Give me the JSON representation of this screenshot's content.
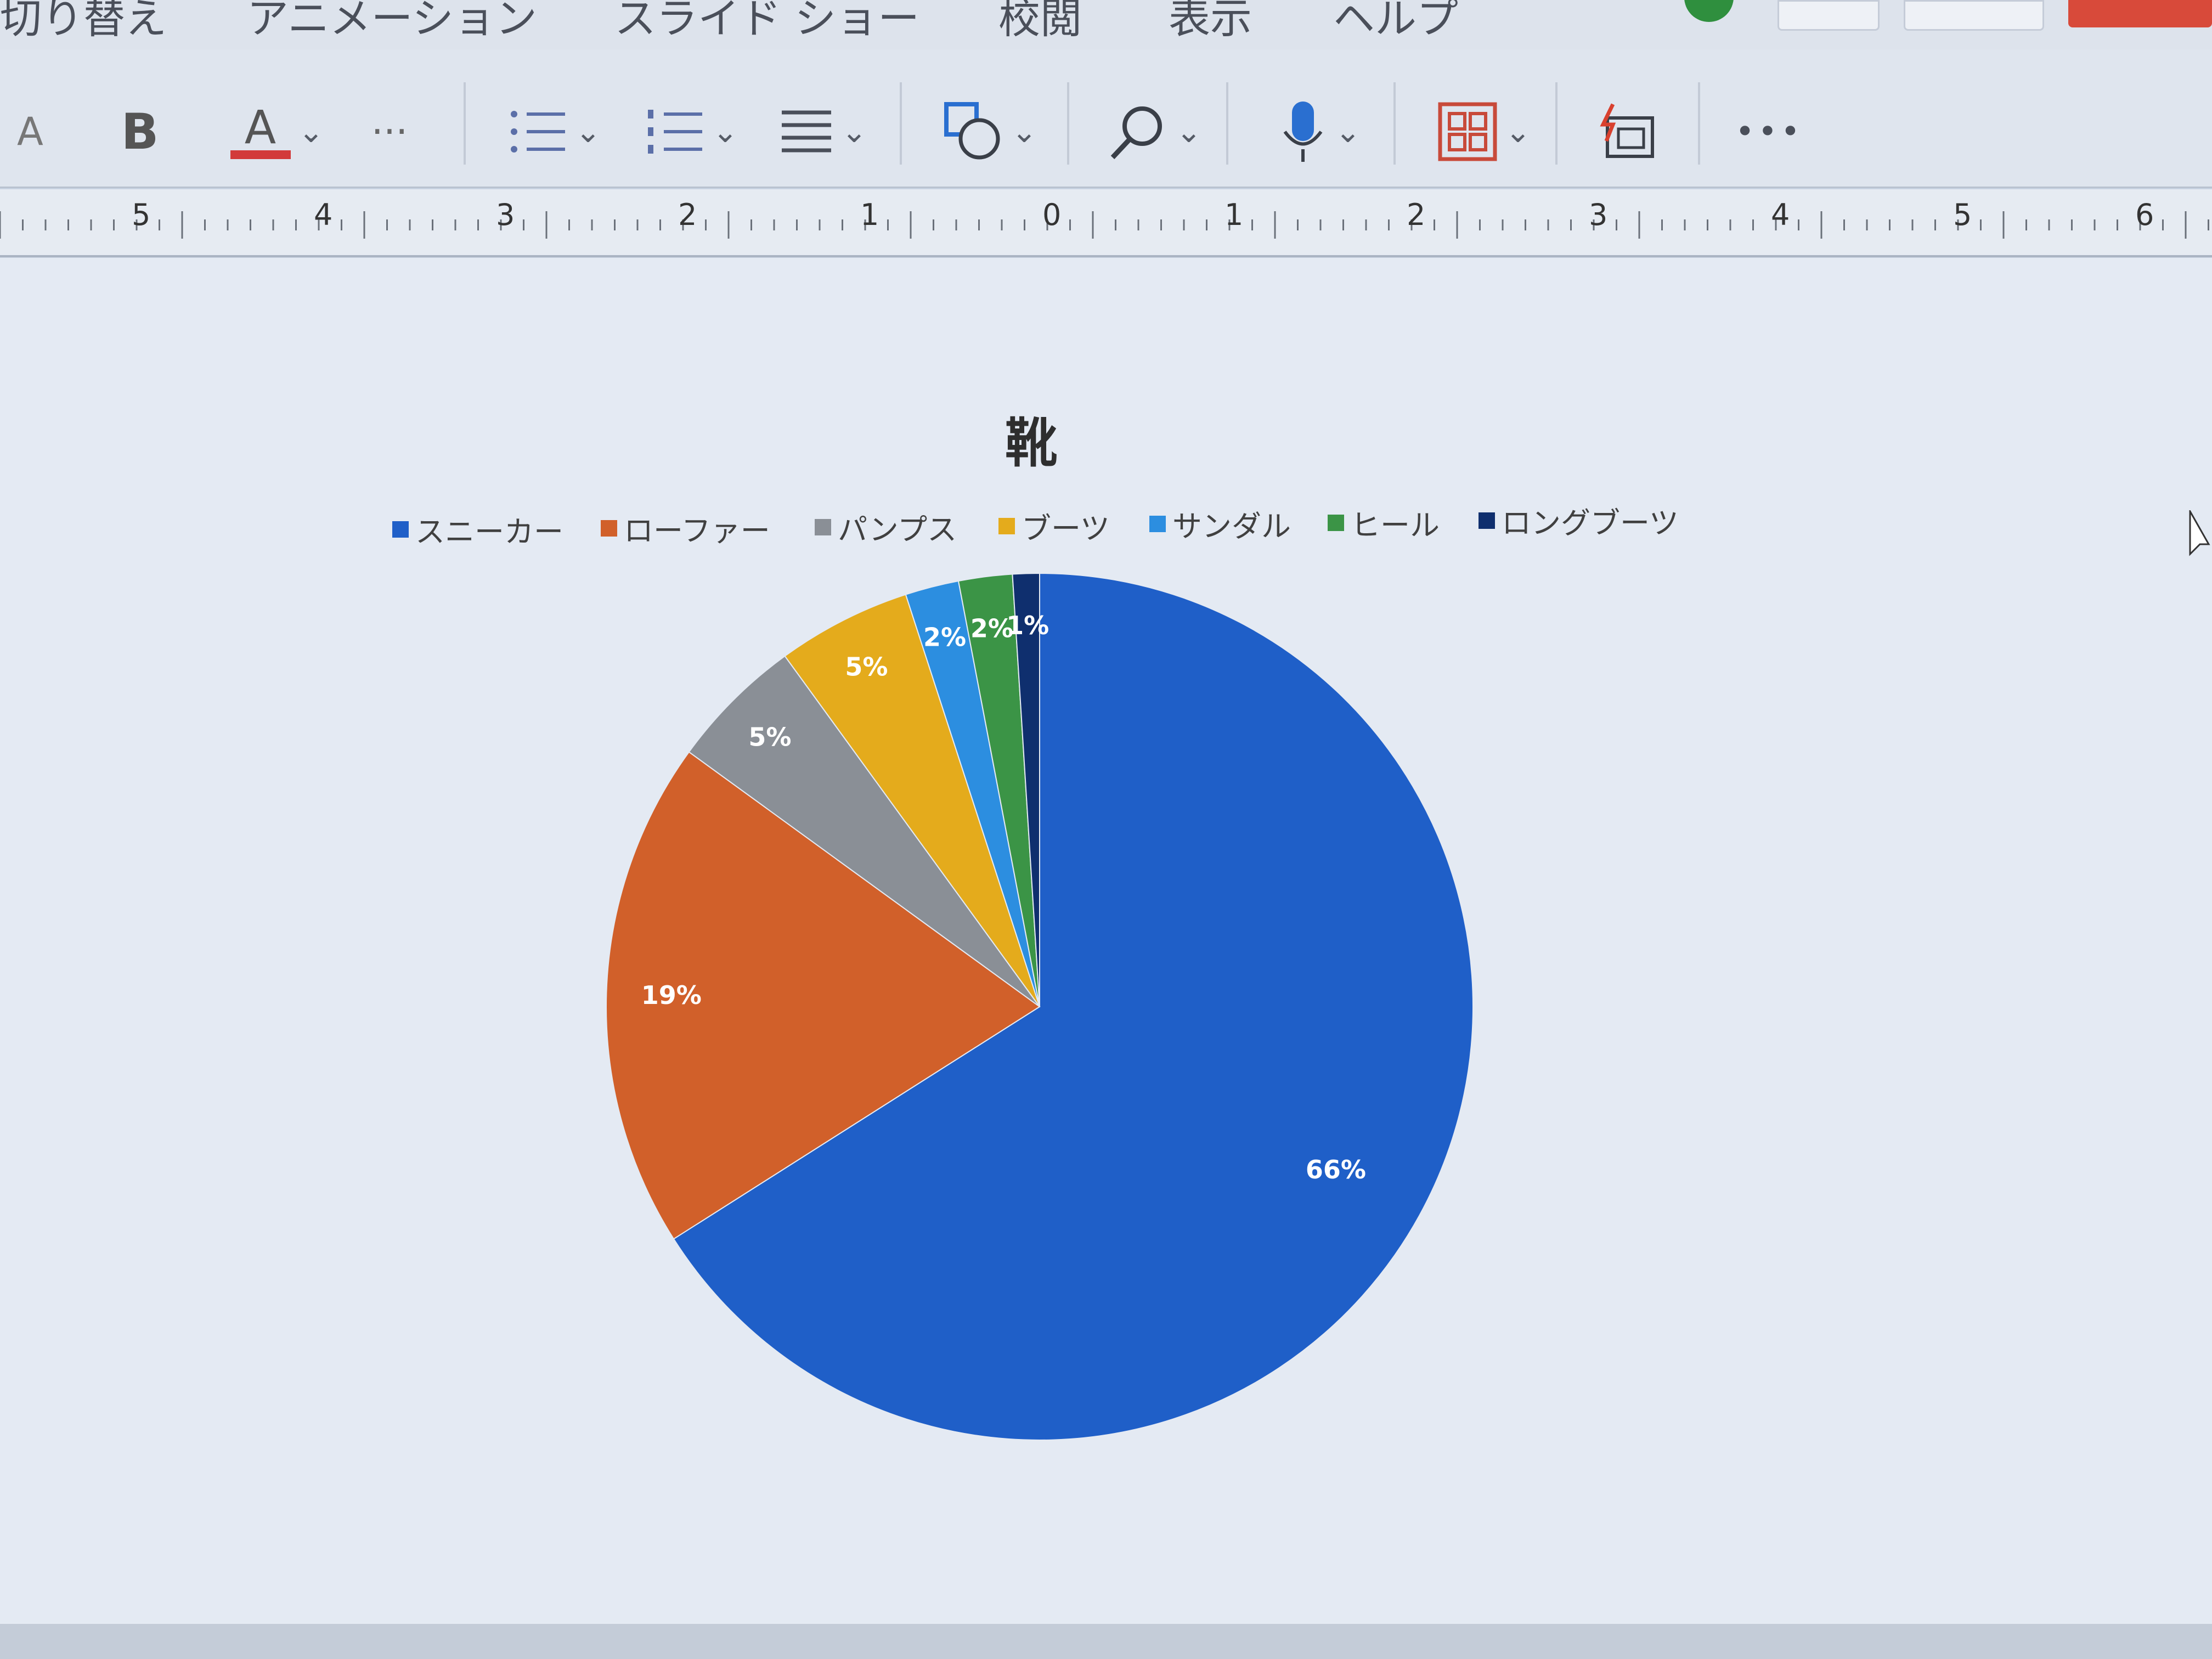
{
  "ribbon": {
    "tabs": [
      "切り替え",
      "アニメーション",
      "スライド ショー",
      "校閲",
      "表示",
      "ヘルプ"
    ]
  },
  "toolbar": {
    "font_size_icon": "A",
    "bold_label": "B",
    "font_color_label": "A",
    "more_label": "···",
    "more_label_2": "•••"
  },
  "ruler": {
    "labels": [
      "5",
      "4",
      "3",
      "2",
      "1",
      "0",
      "1",
      "2",
      "3",
      "4",
      "5",
      "6"
    ]
  },
  "colors": {
    "sneakers": "#1f5fc8",
    "loafers": "#d1602a",
    "pumps": "#8a8f96",
    "boots": "#e4ab1c",
    "sandals": "#2c8ee0",
    "heels": "#3b9446",
    "long_boots": "#0f2f6e"
  },
  "chart_data": {
    "type": "pie",
    "title": "靴",
    "legend_position": "top",
    "categories": [
      "スニーカー",
      "ローファー",
      "パンプス",
      "ブーツ",
      "サンダル",
      "ヒール",
      "ロングブーツ"
    ],
    "values": [
      66,
      19,
      5,
      5,
      2,
      2,
      1
    ],
    "labels": [
      "66%",
      "19%",
      "5%",
      "5%",
      "2%",
      "2%",
      "1%"
    ]
  }
}
